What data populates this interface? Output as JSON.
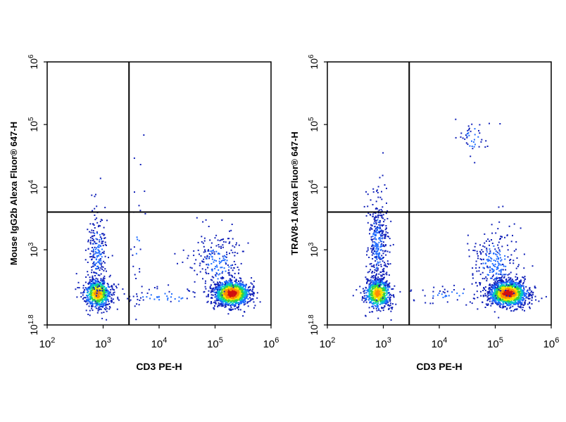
{
  "chart_data": [
    {
      "type": "scatter",
      "title": "",
      "xlabel": "CD3 PE-H",
      "ylabel": "Mouse IgG2b Alexa Fluor® 647-H",
      "x_scale": "log",
      "y_scale": "log",
      "xlim": [
        100,
        1000000
      ],
      "ylim": [
        63,
        1000000
      ],
      "x_ticks": [
        {
          "base": "10",
          "exp": "2",
          "value": 100
        },
        {
          "base": "10",
          "exp": "3",
          "value": 1000
        },
        {
          "base": "10",
          "exp": "4",
          "value": 10000
        },
        {
          "base": "10",
          "exp": "5",
          "value": 100000
        },
        {
          "base": "10",
          "exp": "6",
          "value": 1000000
        }
      ],
      "y_ticks": [
        {
          "base": "10",
          "exp": "1.8",
          "value": 63
        },
        {
          "base": "10",
          "exp": "3",
          "value": 1000
        },
        {
          "base": "10",
          "exp": "4",
          "value": 10000
        },
        {
          "base": "10",
          "exp": "5",
          "value": 100000
        },
        {
          "base": "10",
          "exp": "6",
          "value": 1000000
        }
      ],
      "quadrant_gate": {
        "x": 2900,
        "y": 4000
      },
      "populations": [
        {
          "cx": 800,
          "cy": 200,
          "sx_dex": 0.12,
          "sy_dex": 0.12,
          "n": 700,
          "density": "high"
        },
        {
          "cx": 800,
          "cy": 900,
          "sx_dex": 0.09,
          "sy_dex": 0.35,
          "n": 220,
          "density": "low"
        },
        {
          "cx": 200000,
          "cy": 200,
          "sx_dex": 0.16,
          "sy_dex": 0.1,
          "n": 1300,
          "density": "very-high"
        },
        {
          "cx": 110000,
          "cy": 600,
          "sx_dex": 0.22,
          "sy_dex": 0.25,
          "n": 220,
          "density": "low"
        },
        {
          "cx": 14000,
          "cy": 180,
          "sx_dex": 0.5,
          "sy_dex": 0.08,
          "n": 60,
          "density": "low"
        },
        {
          "cx": 4000,
          "cy": 1500,
          "sx_dex": 0.08,
          "sy_dex": 0.6,
          "n": 25,
          "density": "low"
        }
      ]
    },
    {
      "type": "scatter",
      "title": "",
      "xlabel": "CD3 PE-H",
      "ylabel": "TRAV8-1 Alexa Fluor® 647-H",
      "x_scale": "log",
      "y_scale": "log",
      "xlim": [
        100,
        1000000
      ],
      "ylim": [
        63,
        1000000
      ],
      "x_ticks": [
        {
          "base": "10",
          "exp": "2",
          "value": 100
        },
        {
          "base": "10",
          "exp": "3",
          "value": 1000
        },
        {
          "base": "10",
          "exp": "4",
          "value": 10000
        },
        {
          "base": "10",
          "exp": "5",
          "value": 100000
        },
        {
          "base": "10",
          "exp": "6",
          "value": 1000000
        }
      ],
      "y_ticks": [
        {
          "base": "10",
          "exp": "1.8",
          "value": 63
        },
        {
          "base": "10",
          "exp": "3",
          "value": 1000
        },
        {
          "base": "10",
          "exp": "4",
          "value": 10000
        },
        {
          "base": "10",
          "exp": "5",
          "value": 100000
        },
        {
          "base": "10",
          "exp": "6",
          "value": 1000000
        }
      ],
      "quadrant_gate": {
        "x": 2900,
        "y": 4000
      },
      "populations": [
        {
          "cx": 800,
          "cy": 200,
          "sx_dex": 0.12,
          "sy_dex": 0.12,
          "n": 650,
          "density": "high"
        },
        {
          "cx": 800,
          "cy": 1200,
          "sx_dex": 0.1,
          "sy_dex": 0.4,
          "n": 380,
          "density": "low"
        },
        {
          "cx": 170000,
          "cy": 200,
          "sx_dex": 0.17,
          "sy_dex": 0.1,
          "n": 1300,
          "density": "very-high"
        },
        {
          "cx": 100000,
          "cy": 600,
          "sx_dex": 0.22,
          "sy_dex": 0.27,
          "n": 250,
          "density": "low"
        },
        {
          "cx": 40000,
          "cy": 60000,
          "sx_dex": 0.14,
          "sy_dex": 0.14,
          "n": 45,
          "density": "low"
        },
        {
          "cx": 15000,
          "cy": 180,
          "sx_dex": 0.45,
          "sy_dex": 0.08,
          "n": 55,
          "density": "low"
        }
      ]
    }
  ]
}
